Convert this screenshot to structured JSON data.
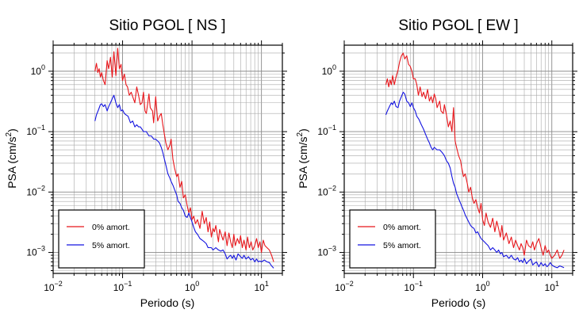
{
  "chart_data": [
    {
      "type": "line",
      "title": "Sitio PGOL [ NS ]",
      "xlabel": "Periodo (s)",
      "ylabel": "PSA (cm/s²)",
      "x_scale": "log",
      "y_scale": "log",
      "xlim": [
        0.01,
        20
      ],
      "ylim": [
        0.00045,
        2.7
      ],
      "grid": true,
      "legend_position": "lower-left",
      "x_ticks": [
        {
          "value": 0.01,
          "mant": "10",
          "exp": "−2"
        },
        {
          "value": 0.1,
          "mant": "10",
          "exp": "−1"
        },
        {
          "value": 1,
          "mant": "10",
          "exp": "0"
        },
        {
          "value": 10,
          "mant": "10",
          "exp": "1"
        }
      ],
      "y_ticks": [
        {
          "value": 0.001,
          "mant": "10",
          "exp": "−3"
        },
        {
          "value": 0.01,
          "mant": "10",
          "exp": "−2"
        },
        {
          "value": 0.1,
          "mant": "10",
          "exp": "−1"
        },
        {
          "value": 1,
          "mant": "10",
          "exp": "0"
        }
      ],
      "series": [
        {
          "name": "0% amort.",
          "color": "#e8161b",
          "x": [
            0.04,
            0.042,
            0.044,
            0.046,
            0.048,
            0.05,
            0.053,
            0.056,
            0.06,
            0.063,
            0.067,
            0.071,
            0.075,
            0.08,
            0.085,
            0.09,
            0.095,
            0.1,
            0.106,
            0.112,
            0.118,
            0.125,
            0.133,
            0.14,
            0.15,
            0.16,
            0.17,
            0.18,
            0.19,
            0.2,
            0.21,
            0.22,
            0.24,
            0.25,
            0.27,
            0.28,
            0.3,
            0.32,
            0.34,
            0.36,
            0.38,
            0.4,
            0.42,
            0.45,
            0.48,
            0.5,
            0.53,
            0.56,
            0.6,
            0.63,
            0.67,
            0.71,
            0.75,
            0.8,
            0.85,
            0.9,
            0.95,
            1.0,
            1.06,
            1.12,
            1.2,
            1.3,
            1.4,
            1.5,
            1.6,
            1.7,
            1.8,
            1.9,
            2.0,
            2.1,
            2.2,
            2.4,
            2.5,
            2.7,
            2.8,
            3.0,
            3.2,
            3.4,
            3.6,
            3.8,
            4.0,
            4.2,
            4.5,
            4.8,
            5.0,
            5.3,
            5.6,
            6.0,
            6.3,
            6.7,
            7.1,
            7.5,
            8.0,
            8.5,
            9.0,
            9.5,
            10,
            10.6,
            11.2,
            12,
            13,
            14,
            15
          ],
          "y": [
            1.0,
            1.35,
            0.95,
            1.1,
            0.8,
            0.95,
            0.7,
            0.6,
            1.5,
            1.1,
            1.7,
            0.8,
            2.1,
            0.85,
            2.4,
            1.1,
            1.3,
            0.7,
            0.9,
            0.6,
            0.55,
            0.4,
            0.45,
            0.38,
            0.3,
            0.55,
            0.4,
            0.28,
            0.3,
            0.45,
            0.22,
            0.2,
            0.42,
            0.25,
            0.22,
            0.14,
            0.38,
            0.15,
            0.18,
            0.2,
            0.13,
            0.09,
            0.065,
            0.05,
            0.06,
            0.075,
            0.035,
            0.025,
            0.018,
            0.02,
            0.012,
            0.015,
            0.008,
            0.009,
            0.006,
            0.0045,
            0.0055,
            0.0035,
            0.004,
            0.003,
            0.0035,
            0.0025,
            0.0048,
            0.003,
            0.0038,
            0.0022,
            0.0032,
            0.0018,
            0.0025,
            0.0022,
            0.0028,
            0.0015,
            0.0024,
            0.0018,
            0.0016,
            0.0022,
            0.0013,
            0.0021,
            0.0015,
            0.0012,
            0.002,
            0.0013,
            0.0017,
            0.0014,
            0.0019,
            0.0012,
            0.0016,
            0.0011,
            0.0018,
            0.0012,
            0.0015,
            0.0011,
            0.0013,
            0.0017,
            0.0012,
            0.0015,
            0.001,
            0.0016,
            0.0013,
            0.0012,
            0.0011,
            0.0009,
            0.0007
          ]
        },
        {
          "name": "5% amort.",
          "color": "#1414e0",
          "x": [
            0.04,
            0.042,
            0.045,
            0.048,
            0.05,
            0.053,
            0.056,
            0.06,
            0.063,
            0.067,
            0.071,
            0.075,
            0.08,
            0.085,
            0.09,
            0.095,
            0.1,
            0.106,
            0.112,
            0.12,
            0.13,
            0.14,
            0.15,
            0.16,
            0.17,
            0.18,
            0.19,
            0.2,
            0.22,
            0.24,
            0.26,
            0.28,
            0.3,
            0.32,
            0.34,
            0.36,
            0.38,
            0.4,
            0.42,
            0.45,
            0.48,
            0.5,
            0.53,
            0.56,
            0.6,
            0.63,
            0.67,
            0.71,
            0.75,
            0.8,
            0.85,
            0.9,
            0.95,
            1.0,
            1.06,
            1.12,
            1.2,
            1.3,
            1.4,
            1.5,
            1.6,
            1.7,
            1.8,
            1.9,
            2.0,
            2.2,
            2.4,
            2.6,
            2.8,
            3.0,
            3.2,
            3.4,
            3.6,
            3.8,
            4.0,
            4.3,
            4.6,
            5.0,
            5.3,
            5.6,
            6.0,
            6.5,
            7.0,
            7.5,
            8.0,
            8.5,
            9.0,
            9.5,
            10,
            11,
            12,
            13,
            14,
            15
          ],
          "y": [
            0.15,
            0.19,
            0.23,
            0.28,
            0.29,
            0.26,
            0.28,
            0.22,
            0.26,
            0.3,
            0.35,
            0.4,
            0.3,
            0.25,
            0.28,
            0.22,
            0.23,
            0.2,
            0.19,
            0.18,
            0.14,
            0.15,
            0.12,
            0.13,
            0.12,
            0.12,
            0.11,
            0.1,
            0.1,
            0.085,
            0.085,
            0.075,
            0.075,
            0.07,
            0.065,
            0.055,
            0.045,
            0.035,
            0.028,
            0.02,
            0.017,
            0.015,
            0.013,
            0.011,
            0.009,
            0.007,
            0.0065,
            0.0055,
            0.005,
            0.004,
            0.0038,
            0.0045,
            0.0038,
            0.0032,
            0.0026,
            0.0022,
            0.002,
            0.0017,
            0.0016,
            0.0015,
            0.0014,
            0.0012,
            0.0012,
            0.0012,
            0.0011,
            0.0012,
            0.0011,
            0.00105,
            0.0011,
            0.00095,
            0.00078,
            0.00085,
            0.0009,
            0.0008,
            0.0009,
            0.00075,
            0.00095,
            0.00085,
            0.0008,
            0.0009,
            0.00078,
            0.00085,
            0.00075,
            0.0008,
            0.0007,
            0.00078,
            0.0007,
            0.00072,
            0.0007,
            0.00075,
            0.0007,
            0.00068,
            0.0006,
            0.00055
          ]
        }
      ]
    },
    {
      "type": "line",
      "title": "Sitio PGOL [ EW ]",
      "xlabel": "Periodo (s)",
      "ylabel": "PSA (cm/s²)",
      "x_scale": "log",
      "y_scale": "log",
      "xlim": [
        0.01,
        20
      ],
      "ylim": [
        0.00045,
        2.7
      ],
      "grid": true,
      "legend_position": "lower-left",
      "x_ticks": [
        {
          "value": 0.01,
          "mant": "10",
          "exp": "−2"
        },
        {
          "value": 0.1,
          "mant": "10",
          "exp": "−1"
        },
        {
          "value": 1,
          "mant": "10",
          "exp": "0"
        },
        {
          "value": 10,
          "mant": "10",
          "exp": "1"
        }
      ],
      "y_ticks": [
        {
          "value": 0.001,
          "mant": "10",
          "exp": "−3"
        },
        {
          "value": 0.01,
          "mant": "10",
          "exp": "−2"
        },
        {
          "value": 0.1,
          "mant": "10",
          "exp": "−1"
        },
        {
          "value": 1,
          "mant": "10",
          "exp": "0"
        }
      ],
      "series": [
        {
          "name": "0% amort.",
          "color": "#e8161b",
          "x": [
            0.04,
            0.042,
            0.044,
            0.046,
            0.048,
            0.05,
            0.053,
            0.056,
            0.06,
            0.063,
            0.067,
            0.071,
            0.075,
            0.08,
            0.085,
            0.09,
            0.095,
            0.1,
            0.106,
            0.112,
            0.118,
            0.125,
            0.133,
            0.14,
            0.15,
            0.16,
            0.17,
            0.18,
            0.19,
            0.2,
            0.21,
            0.22,
            0.24,
            0.25,
            0.27,
            0.28,
            0.3,
            0.32,
            0.34,
            0.36,
            0.38,
            0.4,
            0.42,
            0.45,
            0.48,
            0.5,
            0.53,
            0.56,
            0.6,
            0.63,
            0.67,
            0.71,
            0.75,
            0.8,
            0.85,
            0.9,
            0.95,
            1.0,
            1.06,
            1.12,
            1.2,
            1.3,
            1.4,
            1.5,
            1.6,
            1.7,
            1.8,
            1.9,
            2.0,
            2.2,
            2.4,
            2.6,
            2.8,
            3.0,
            3.2,
            3.4,
            3.6,
            3.8,
            4.0,
            4.3,
            4.6,
            5.0,
            5.3,
            5.6,
            6.0,
            6.5,
            7.0,
            7.5,
            8.0,
            8.5,
            9.0,
            9.5,
            10,
            11,
            12,
            13,
            14,
            15
          ],
          "y": [
            0.6,
            0.75,
            0.55,
            0.72,
            0.6,
            0.85,
            0.6,
            0.8,
            1.05,
            1.4,
            1.8,
            2.0,
            1.6,
            1.8,
            1.3,
            1.2,
            1.0,
            0.75,
            0.75,
            0.6,
            0.4,
            0.55,
            0.38,
            0.45,
            0.35,
            0.5,
            0.32,
            0.38,
            0.3,
            0.42,
            0.35,
            0.25,
            0.32,
            0.22,
            0.2,
            0.28,
            0.19,
            0.12,
            0.15,
            0.1,
            0.25,
            0.07,
            0.055,
            0.04,
            0.033,
            0.025,
            0.018,
            0.02,
            0.014,
            0.01,
            0.012,
            0.008,
            0.0065,
            0.0075,
            0.0055,
            0.0045,
            0.0065,
            0.0035,
            0.0028,
            0.0045,
            0.0032,
            0.0026,
            0.0037,
            0.0022,
            0.0033,
            0.0025,
            0.0018,
            0.0028,
            0.0016,
            0.0021,
            0.0014,
            0.0018,
            0.0012,
            0.0016,
            0.0013,
            0.0011,
            0.0014,
            0.0012,
            0.0009,
            0.0016,
            0.0013,
            0.0012,
            0.0015,
            0.0011,
            0.0014,
            0.0017,
            0.0012,
            0.0009,
            0.0013,
            0.001,
            0.0011,
            0.0009,
            0.0008,
            0.0009,
            0.0011,
            0.0008,
            0.0009,
            0.0011
          ]
        },
        {
          "name": "5% amort.",
          "color": "#1414e0",
          "x": [
            0.04,
            0.042,
            0.045,
            0.048,
            0.05,
            0.053,
            0.056,
            0.06,
            0.063,
            0.067,
            0.071,
            0.075,
            0.08,
            0.085,
            0.09,
            0.095,
            0.1,
            0.106,
            0.112,
            0.12,
            0.13,
            0.14,
            0.15,
            0.16,
            0.17,
            0.18,
            0.19,
            0.2,
            0.22,
            0.24,
            0.26,
            0.28,
            0.3,
            0.32,
            0.34,
            0.36,
            0.38,
            0.4,
            0.42,
            0.45,
            0.48,
            0.5,
            0.53,
            0.56,
            0.6,
            0.63,
            0.67,
            0.71,
            0.75,
            0.8,
            0.85,
            0.9,
            0.95,
            1.0,
            1.06,
            1.12,
            1.2,
            1.3,
            1.4,
            1.5,
            1.6,
            1.7,
            1.8,
            1.9,
            2.0,
            2.2,
            2.4,
            2.6,
            2.8,
            3.0,
            3.2,
            3.4,
            3.6,
            3.8,
            4.0,
            4.3,
            4.6,
            5.0,
            5.3,
            5.6,
            6.0,
            6.5,
            7.0,
            7.5,
            8.0,
            8.5,
            9.0,
            9.5,
            10,
            11,
            12,
            13,
            14,
            15
          ],
          "y": [
            0.19,
            0.22,
            0.26,
            0.3,
            0.28,
            0.32,
            0.26,
            0.25,
            0.32,
            0.38,
            0.45,
            0.42,
            0.32,
            0.3,
            0.26,
            0.3,
            0.25,
            0.22,
            0.18,
            0.16,
            0.13,
            0.11,
            0.09,
            0.075,
            0.065,
            0.055,
            0.05,
            0.055,
            0.05,
            0.05,
            0.045,
            0.04,
            0.033,
            0.03,
            0.025,
            0.018,
            0.014,
            0.012,
            0.0095,
            0.0078,
            0.0065,
            0.0058,
            0.005,
            0.0042,
            0.0036,
            0.0032,
            0.0028,
            0.0026,
            0.0025,
            0.0021,
            0.0022,
            0.0019,
            0.0017,
            0.0016,
            0.0015,
            0.0014,
            0.0013,
            0.0011,
            0.0012,
            0.0011,
            0.001,
            0.0011,
            0.00095,
            0.001,
            0.00085,
            0.0009,
            0.0008,
            0.0009,
            0.00078,
            0.00075,
            0.00082,
            0.0007,
            0.00075,
            0.00068,
            0.0008,
            0.00065,
            0.00072,
            0.00078,
            0.00062,
            0.00066,
            0.0007,
            0.00058,
            0.00068,
            0.0006,
            0.00065,
            0.00058,
            0.00062,
            0.00068,
            0.00062,
            0.00058,
            0.00056,
            0.0006,
            0.00058,
            0.00056
          ]
        }
      ]
    }
  ]
}
